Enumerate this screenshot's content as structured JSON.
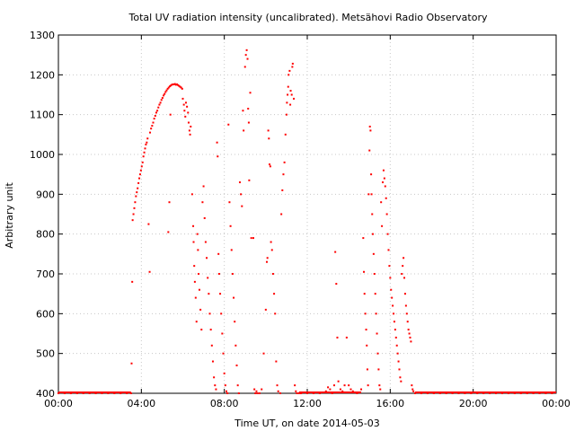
{
  "chart_data": {
    "type": "scatter",
    "title": "Total UV radiation intensity (uncalibrated). Metsähovi Radio Observatory",
    "xlabel": "Time UT, on date 2014-05-03",
    "ylabel": "Arbitrary unit",
    "x_unit": "hours UT",
    "xlim": [
      0,
      24
    ],
    "ylim": [
      400,
      1300
    ],
    "x_ticks": [
      0,
      4,
      8,
      12,
      16,
      20,
      24
    ],
    "x_tick_labels": [
      "00:00",
      "04:00",
      "08:00",
      "12:00",
      "16:00",
      "20:00",
      "00:00"
    ],
    "y_ticks": [
      400,
      500,
      600,
      700,
      800,
      900,
      1000,
      1100,
      1200,
      1300
    ],
    "y_tick_labels": [
      "400",
      "500",
      "600",
      "700",
      "800",
      "900",
      "1000",
      "1100",
      "1200",
      "1300"
    ],
    "grid": true,
    "marker_color": "#ff0000",
    "series": [
      {
        "points": [
          [
            0.0,
            400
          ],
          [
            0.3,
            400
          ],
          [
            0.6,
            400
          ],
          [
            0.9,
            400
          ],
          [
            1.2,
            400
          ],
          [
            1.5,
            400
          ],
          [
            1.8,
            400
          ],
          [
            2.1,
            400
          ],
          [
            2.4,
            400
          ],
          [
            2.7,
            400
          ],
          [
            3.0,
            400
          ],
          [
            3.3,
            400
          ],
          [
            3.5,
            400
          ],
          [
            3.53,
            475
          ],
          [
            3.56,
            680
          ],
          [
            3.58,
            835
          ],
          [
            3.62,
            850
          ],
          [
            3.66,
            865
          ],
          [
            3.7,
            880
          ],
          [
            3.74,
            895
          ],
          [
            3.78,
            905
          ],
          [
            3.82,
            915
          ],
          [
            3.86,
            928
          ],
          [
            3.9,
            940
          ],
          [
            3.94,
            950
          ],
          [
            3.98,
            960
          ],
          [
            4.02,
            970
          ],
          [
            4.06,
            980
          ],
          [
            4.1,
            995
          ],
          [
            4.14,
            1005
          ],
          [
            4.18,
            1015
          ],
          [
            4.22,
            1025
          ],
          [
            4.26,
            1030
          ],
          [
            4.3,
            1040
          ],
          [
            4.35,
            825
          ],
          [
            4.4,
            705
          ],
          [
            4.42,
            1055
          ],
          [
            4.47,
            1065
          ],
          [
            4.52,
            1072
          ],
          [
            4.57,
            1080
          ],
          [
            4.62,
            1090
          ],
          [
            4.67,
            1097
          ],
          [
            4.72,
            1105
          ],
          [
            4.77,
            1110
          ],
          [
            4.82,
            1118
          ],
          [
            4.87,
            1125
          ],
          [
            4.92,
            1130
          ],
          [
            4.97,
            1137
          ],
          [
            5.02,
            1142
          ],
          [
            5.07,
            1148
          ],
          [
            5.12,
            1152
          ],
          [
            5.17,
            1157
          ],
          [
            5.22,
            1161
          ],
          [
            5.27,
            1165
          ],
          [
            5.32,
            1168
          ],
          [
            5.37,
            1171
          ],
          [
            5.42,
            1173
          ],
          [
            5.47,
            1175
          ],
          [
            5.52,
            1176
          ],
          [
            5.57,
            1176
          ],
          [
            5.62,
            1177
          ],
          [
            5.67,
            1175
          ],
          [
            5.72,
            1176
          ],
          [
            5.77,
            1174
          ],
          [
            5.82,
            1172
          ],
          [
            5.87,
            1170
          ],
          [
            5.92,
            1168
          ],
          [
            5.97,
            1165
          ],
          [
            5.3,
            805
          ],
          [
            5.35,
            880
          ],
          [
            5.4,
            1100
          ],
          [
            6.0,
            1140
          ],
          [
            6.05,
            1125
          ],
          [
            6.08,
            1110
          ],
          [
            6.12,
            1095
          ],
          [
            6.15,
            1130
          ],
          [
            6.2,
            1120
          ],
          [
            6.25,
            1105
          ],
          [
            6.28,
            1080
          ],
          [
            6.32,
            1060
          ],
          [
            6.35,
            1050
          ],
          [
            6.38,
            1070
          ],
          [
            6.45,
            900
          ],
          [
            6.5,
            820
          ],
          [
            6.52,
            780
          ],
          [
            6.55,
            720
          ],
          [
            6.58,
            680
          ],
          [
            6.62,
            640
          ],
          [
            6.66,
            580
          ],
          [
            6.7,
            800
          ],
          [
            6.73,
            760
          ],
          [
            6.76,
            700
          ],
          [
            6.8,
            660
          ],
          [
            6.85,
            610
          ],
          [
            6.9,
            560
          ],
          [
            6.95,
            880
          ],
          [
            7.0,
            920
          ],
          [
            7.05,
            840
          ],
          [
            7.1,
            780
          ],
          [
            7.15,
            740
          ],
          [
            7.2,
            690
          ],
          [
            7.25,
            650
          ],
          [
            7.3,
            600
          ],
          [
            7.35,
            560
          ],
          [
            7.4,
            520
          ],
          [
            7.45,
            480
          ],
          [
            7.5,
            440
          ],
          [
            7.55,
            420
          ],
          [
            7.6,
            410
          ],
          [
            7.65,
            1030
          ],
          [
            7.68,
            995
          ],
          [
            7.72,
            750
          ],
          [
            7.75,
            700
          ],
          [
            7.8,
            650
          ],
          [
            7.85,
            600
          ],
          [
            7.9,
            550
          ],
          [
            7.95,
            500
          ],
          [
            8.0,
            450
          ],
          [
            8.05,
            420
          ],
          [
            8.1,
            405
          ],
          [
            8.15,
            400
          ],
          [
            8.2,
            1075
          ],
          [
            8.25,
            880
          ],
          [
            8.3,
            820
          ],
          [
            8.35,
            760
          ],
          [
            8.4,
            700
          ],
          [
            8.45,
            640
          ],
          [
            8.5,
            580
          ],
          [
            8.55,
            520
          ],
          [
            8.6,
            470
          ],
          [
            8.65,
            420
          ],
          [
            8.7,
            400
          ],
          [
            8.75,
            930
          ],
          [
            8.8,
            900
          ],
          [
            8.85,
            870
          ],
          [
            8.9,
            1110
          ],
          [
            8.93,
            1060
          ],
          [
            9.0,
            1220
          ],
          [
            9.04,
            1250
          ],
          [
            9.08,
            1262
          ],
          [
            9.12,
            1240
          ],
          [
            9.15,
            1115
          ],
          [
            9.18,
            1080
          ],
          [
            9.2,
            935
          ],
          [
            9.25,
            1155
          ],
          [
            9.3,
            790
          ],
          [
            9.4,
            790
          ],
          [
            9.45,
            410
          ],
          [
            9.5,
            400
          ],
          [
            9.55,
            405
          ],
          [
            9.6,
            400
          ],
          [
            9.7,
            400
          ],
          [
            9.8,
            410
          ],
          [
            9.9,
            500
          ],
          [
            10.0,
            610
          ],
          [
            10.05,
            730
          ],
          [
            10.08,
            740
          ],
          [
            10.12,
            1060
          ],
          [
            10.15,
            1040
          ],
          [
            10.18,
            975
          ],
          [
            10.22,
            970
          ],
          [
            10.25,
            780
          ],
          [
            10.3,
            760
          ],
          [
            10.35,
            700
          ],
          [
            10.4,
            650
          ],
          [
            10.45,
            600
          ],
          [
            10.5,
            480
          ],
          [
            10.55,
            420
          ],
          [
            10.6,
            405
          ],
          [
            10.7,
            400
          ],
          [
            10.75,
            850
          ],
          [
            10.8,
            910
          ],
          [
            10.85,
            950
          ],
          [
            10.9,
            980
          ],
          [
            10.95,
            1050
          ],
          [
            11.0,
            1100
          ],
          [
            11.02,
            1130
          ],
          [
            11.05,
            1150
          ],
          [
            11.08,
            1170
          ],
          [
            11.1,
            1200
          ],
          [
            11.15,
            1210
          ],
          [
            11.18,
            1125
          ],
          [
            11.2,
            1160
          ],
          [
            11.25,
            1150
          ],
          [
            11.28,
            1220
          ],
          [
            11.3,
            1228
          ],
          [
            11.35,
            1140
          ],
          [
            11.4,
            420
          ],
          [
            11.45,
            405
          ],
          [
            11.5,
            400
          ],
          [
            11.6,
            400
          ],
          [
            11.7,
            400
          ],
          [
            12.0,
            400
          ],
          [
            12.3,
            400
          ],
          [
            12.6,
            400
          ],
          [
            12.9,
            405
          ],
          [
            13.0,
            415
          ],
          [
            13.1,
            410
          ],
          [
            13.2,
            400
          ],
          [
            13.3,
            420
          ],
          [
            13.35,
            755
          ],
          [
            13.4,
            675
          ],
          [
            13.45,
            540
          ],
          [
            13.5,
            430
          ],
          [
            13.6,
            410
          ],
          [
            13.7,
            405
          ],
          [
            13.8,
            420
          ],
          [
            13.9,
            540
          ],
          [
            14.0,
            420
          ],
          [
            14.1,
            410
          ],
          [
            14.2,
            405
          ],
          [
            14.4,
            400
          ],
          [
            14.6,
            410
          ],
          [
            14.7,
            790
          ],
          [
            14.73,
            705
          ],
          [
            14.76,
            650
          ],
          [
            14.8,
            600
          ],
          [
            14.84,
            560
          ],
          [
            14.87,
            520
          ],
          [
            14.9,
            460
          ],
          [
            14.93,
            420
          ],
          [
            14.96,
            900
          ],
          [
            15.0,
            1010
          ],
          [
            15.02,
            1070
          ],
          [
            15.05,
            1060
          ],
          [
            15.08,
            950
          ],
          [
            15.1,
            900
          ],
          [
            15.13,
            850
          ],
          [
            15.16,
            800
          ],
          [
            15.2,
            750
          ],
          [
            15.24,
            700
          ],
          [
            15.28,
            650
          ],
          [
            15.32,
            600
          ],
          [
            15.36,
            550
          ],
          [
            15.4,
            500
          ],
          [
            15.44,
            460
          ],
          [
            15.48,
            420
          ],
          [
            15.52,
            410
          ],
          [
            15.56,
            880
          ],
          [
            15.6,
            820
          ],
          [
            15.64,
            930
          ],
          [
            15.68,
            960
          ],
          [
            15.72,
            940
          ],
          [
            15.76,
            920
          ],
          [
            15.8,
            890
          ],
          [
            15.84,
            850
          ],
          [
            15.88,
            800
          ],
          [
            15.92,
            760
          ],
          [
            15.96,
            720
          ],
          [
            16.0,
            690
          ],
          [
            16.04,
            660
          ],
          [
            16.08,
            640
          ],
          [
            16.12,
            620
          ],
          [
            16.16,
            600
          ],
          [
            16.2,
            580
          ],
          [
            16.24,
            560
          ],
          [
            16.28,
            540
          ],
          [
            16.32,
            520
          ],
          [
            16.36,
            500
          ],
          [
            16.4,
            480
          ],
          [
            16.44,
            460
          ],
          [
            16.48,
            440
          ],
          [
            16.52,
            430
          ],
          [
            16.56,
            700
          ],
          [
            16.6,
            720
          ],
          [
            16.64,
            740
          ],
          [
            16.68,
            690
          ],
          [
            16.72,
            650
          ],
          [
            16.76,
            620
          ],
          [
            16.8,
            600
          ],
          [
            16.84,
            580
          ],
          [
            16.88,
            560
          ],
          [
            16.92,
            550
          ],
          [
            16.96,
            540
          ],
          [
            17.0,
            530
          ],
          [
            17.04,
            420
          ],
          [
            17.08,
            410
          ],
          [
            17.12,
            405
          ],
          [
            17.2,
            400
          ],
          [
            17.5,
            400
          ],
          [
            17.8,
            400
          ],
          [
            18.1,
            400
          ],
          [
            18.4,
            400
          ],
          [
            18.7,
            400
          ],
          [
            19.0,
            400
          ],
          [
            19.3,
            400
          ],
          [
            19.6,
            400
          ],
          [
            19.9,
            400
          ],
          [
            20.2,
            400
          ],
          [
            20.5,
            400
          ],
          [
            20.8,
            400
          ],
          [
            21.1,
            400
          ],
          [
            21.4,
            400
          ],
          [
            21.7,
            400
          ],
          [
            22.0,
            400
          ],
          [
            22.3,
            400
          ],
          [
            22.6,
            400
          ],
          [
            22.9,
            400
          ],
          [
            23.2,
            400
          ],
          [
            23.5,
            400
          ],
          [
            23.8,
            400
          ]
        ]
      }
    ]
  }
}
